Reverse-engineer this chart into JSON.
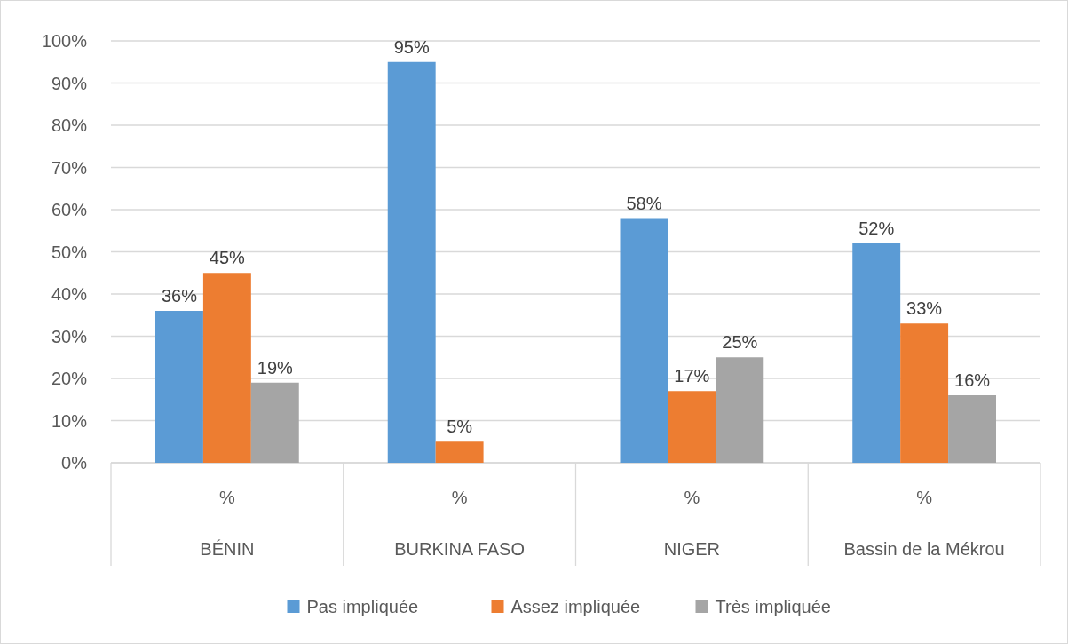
{
  "chart_data": {
    "type": "bar",
    "categories": [
      "%\nBÉNIN",
      "%\nBURKINA FASO",
      "%\nNIGER",
      "%\nBassin de la Mékrou"
    ],
    "series": [
      {
        "name": "Pas impliquée",
        "color": "#5b9bd5",
        "values": [
          36,
          95,
          58,
          52
        ],
        "value_labels": [
          "36%",
          "95%",
          "58%",
          "52%"
        ]
      },
      {
        "name": "Assez impliquée",
        "color": "#ed7d31",
        "values": [
          45,
          5,
          17,
          33
        ],
        "value_labels": [
          "45%",
          "5%",
          "17%",
          "33%"
        ]
      },
      {
        "name": "Très impliquée",
        "color": "#a5a5a5",
        "values": [
          19,
          null,
          25,
          16
        ],
        "value_labels": [
          "19%",
          null,
          "25%",
          "16%"
        ]
      }
    ],
    "ylim": [
      0,
      100
    ],
    "yticks": [
      {
        "value": 0,
        "label": "0%"
      },
      {
        "value": 10,
        "label": "10%"
      },
      {
        "value": 20,
        "label": "20%"
      },
      {
        "value": 30,
        "label": "30%"
      },
      {
        "value": 40,
        "label": "40%"
      },
      {
        "value": 50,
        "label": "50%"
      },
      {
        "value": 60,
        "label": "60%"
      },
      {
        "value": 70,
        "label": "70%"
      },
      {
        "value": 80,
        "label": "80%"
      },
      {
        "value": 90,
        "label": "90%"
      },
      {
        "value": 100,
        "label": "100%"
      }
    ],
    "grid": "y",
    "legend": "bottom"
  }
}
